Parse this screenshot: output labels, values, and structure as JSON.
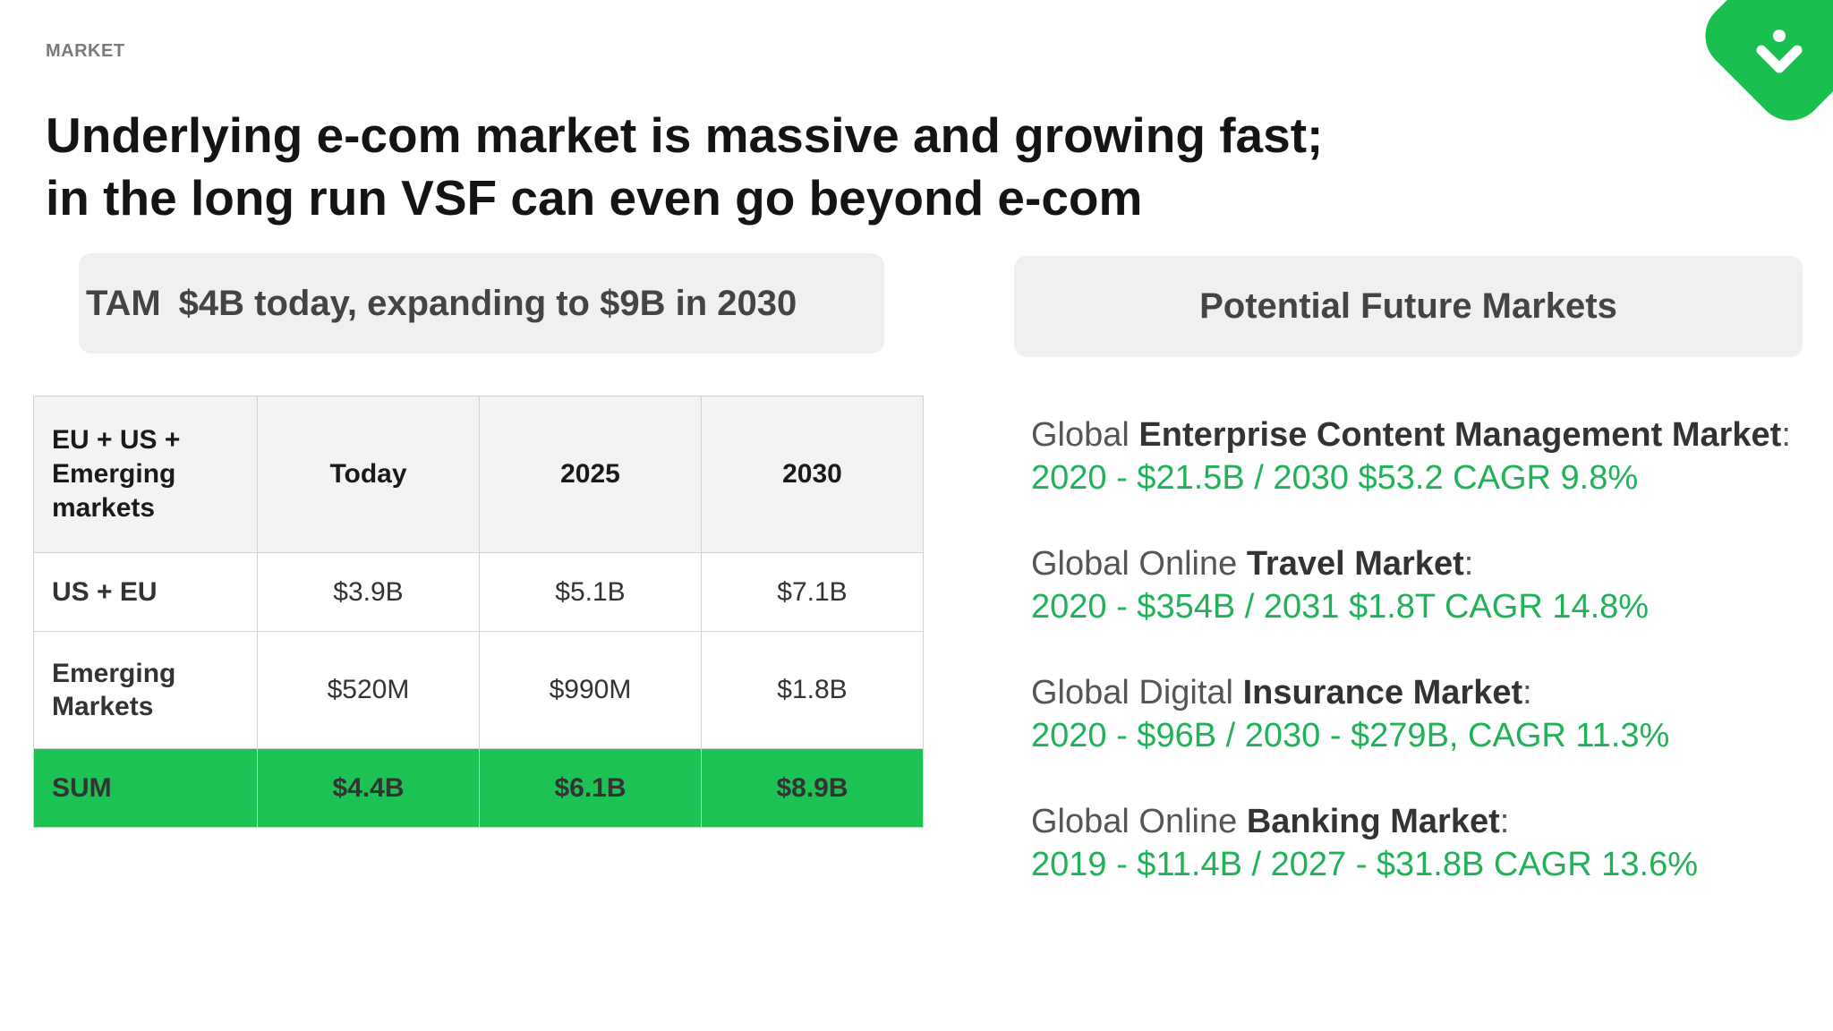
{
  "section_label": "MARKET",
  "headline": "Underlying e-com market is massive and growing fast; in the long run VSF can even go beyond e-com",
  "logo": {
    "icon": "chevron-down-icon",
    "color": "#19c04f"
  },
  "tam": {
    "prefix": "TAM",
    "text": "$4B today, expanding to $9B in 2030"
  },
  "future_header": "Potential Future Markets",
  "table": {
    "header": [
      "EU + US + Emerging markets",
      "Today",
      "2025",
      "2030"
    ],
    "rows": [
      {
        "label": "US + EU",
        "values": [
          "$3.9B",
          "$5.1B",
          "$7.1B"
        ]
      },
      {
        "label": "Emerging Markets",
        "values": [
          "$520M",
          "$990M",
          "$1.8B"
        ]
      }
    ],
    "sum": {
      "label": "SUM",
      "values": [
        "$4.4B",
        "$6.1B",
        "$8.9B"
      ]
    }
  },
  "future_markets": [
    {
      "prefix": "Global ",
      "bold": "Enterprise Content Management Market",
      "suffix": ":",
      "stats": "2020 - $21.5B / 2030 $53.2 CAGR 9.8%"
    },
    {
      "prefix": "Global Online ",
      "bold": "Travel Market",
      "suffix": ":",
      "stats": "2020 - $354B / 2031  $1.8T CAGR 14.8%"
    },
    {
      "prefix": "Global Digital ",
      "bold": "Insurance Market",
      "suffix": ":",
      "stats": "2020 - $96B / 2030 - $279B, CAGR 11.3%"
    },
    {
      "prefix": "Global Online ",
      "bold": "Banking Market",
      "suffix": ":",
      "stats": "2019 - $11.4B / 2027 - $31.8B CAGR 13.6%"
    }
  ],
  "colors": {
    "accent": "#1cc253",
    "stat_text": "#1fb256",
    "box_bg": "#f0f0f0"
  }
}
